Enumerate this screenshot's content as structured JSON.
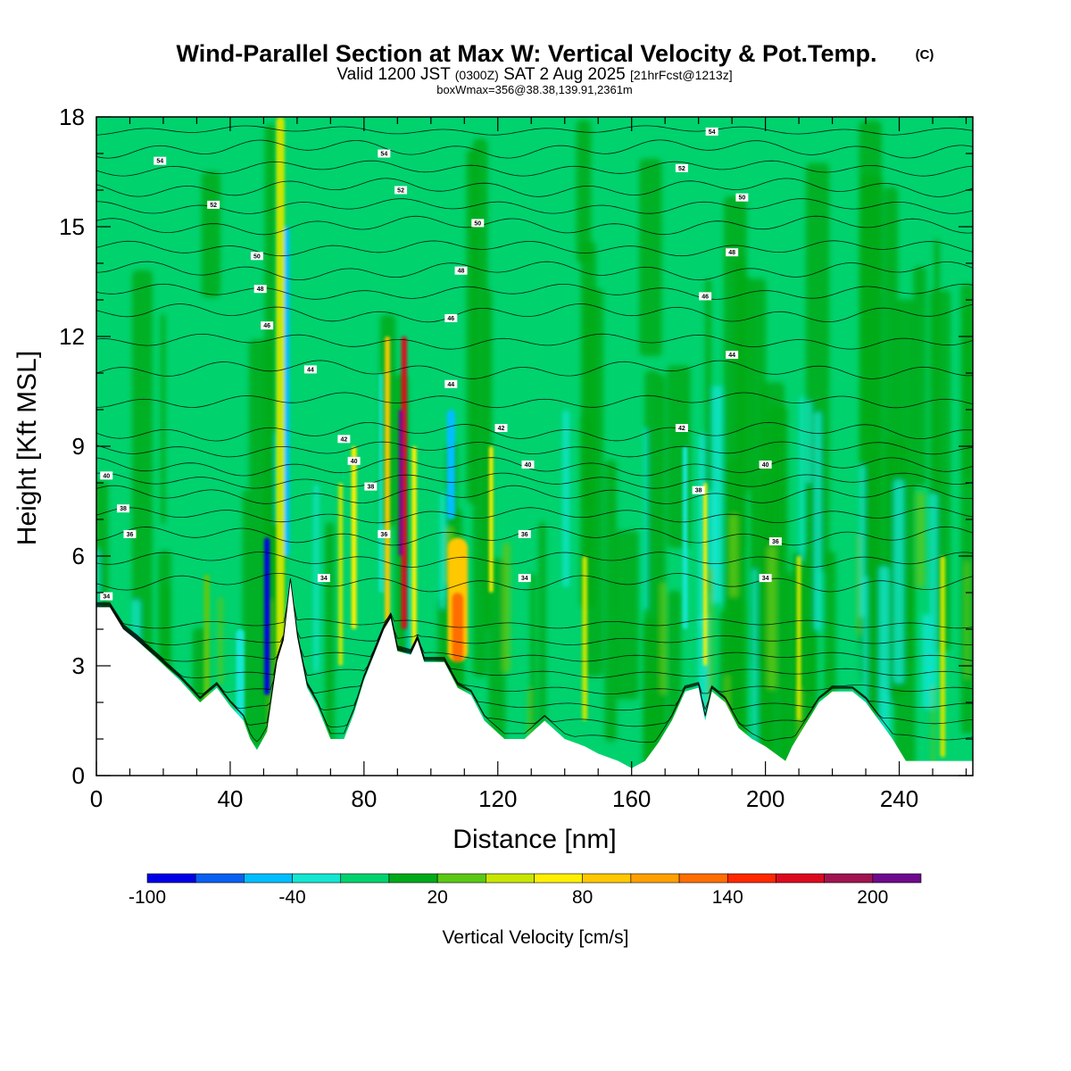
{
  "header": {
    "title_main": "Wind-Parallel Section at Max W: Vertical Velocity & Pot.Temp.",
    "title_mark": "(C)",
    "sub_part1": "Valid 1200 JST",
    "sub_utc": "(0300Z)",
    "sub_part2": "SAT 2 Aug 2025",
    "sub_fcst": "[21hrFcst@1213z]",
    "box_info": "boxWmax=356@38.38,139.91,2361m"
  },
  "chart_data": {
    "type": "heatmap",
    "title": "Wind-Parallel Section at Max W: Vertical Velocity & Pot.Temp.",
    "xlabel": "Distance [nm]",
    "ylabel": "Height [Kft MSL]",
    "xlim": [
      0,
      262
    ],
    "ylim": [
      0,
      18
    ],
    "xticks": [
      {
        "value": 0,
        "label": "0"
      },
      {
        "value": 40,
        "label": "40"
      },
      {
        "value": 80,
        "label": "80"
      },
      {
        "value": 120,
        "label": "120"
      },
      {
        "value": 160,
        "label": "160"
      },
      {
        "value": 200,
        "label": "200"
      },
      {
        "value": 240,
        "label": "240"
      }
    ],
    "yticks": [
      {
        "value": 0,
        "label": "0"
      },
      {
        "value": 3,
        "label": "3"
      },
      {
        "value": 6,
        "label": "6"
      },
      {
        "value": 9,
        "label": "9"
      },
      {
        "value": 12,
        "label": "12"
      },
      {
        "value": 15,
        "label": "15"
      },
      {
        "value": 18,
        "label": "18"
      }
    ],
    "colorbar": {
      "label": "Vertical Velocity [cm/s]",
      "min": -100,
      "max": 220,
      "bins": [
        {
          "from": -100,
          "to": -80,
          "color": "#0000e6"
        },
        {
          "from": -80,
          "to": -60,
          "color": "#0a5ff0"
        },
        {
          "from": -60,
          "to": -40,
          "color": "#00beff"
        },
        {
          "from": -40,
          "to": -20,
          "color": "#14e6d2"
        },
        {
          "from": -20,
          "to": 0,
          "color": "#00d26e"
        },
        {
          "from": 0,
          "to": 20,
          "color": "#00aa19"
        },
        {
          "from": 20,
          "to": 40,
          "color": "#5ac814"
        },
        {
          "from": 40,
          "to": 60,
          "color": "#c8e600"
        },
        {
          "from": 60,
          "to": 80,
          "color": "#fff000"
        },
        {
          "from": 80,
          "to": 100,
          "color": "#ffc800"
        },
        {
          "from": 100,
          "to": 120,
          "color": "#ffa000"
        },
        {
          "from": 120,
          "to": 140,
          "color": "#ff6e00"
        },
        {
          "from": 140,
          "to": 160,
          "color": "#ff2800"
        },
        {
          "from": 160,
          "to": 180,
          "color": "#dc0a1e"
        },
        {
          "from": 180,
          "to": 200,
          "color": "#a01450"
        },
        {
          "from": 200,
          "to": 220,
          "color": "#6e0a8c"
        }
      ],
      "tick_labels": [
        {
          "value": -100,
          "label": "-100"
        },
        {
          "value": -40,
          "label": "-40"
        },
        {
          "value": 20,
          "label": "20"
        },
        {
          "value": 80,
          "label": "80"
        },
        {
          "value": 140,
          "label": "140"
        },
        {
          "value": 200,
          "label": "200"
        }
      ]
    },
    "terrain": [
      [
        0,
        4.6
      ],
      [
        4,
        4.6
      ],
      [
        8,
        4.0
      ],
      [
        12,
        3.7
      ],
      [
        18,
        3.2
      ],
      [
        25,
        2.6
      ],
      [
        31,
        2.0
      ],
      [
        36,
        2.4
      ],
      [
        40,
        1.9
      ],
      [
        44,
        1.5
      ],
      [
        46,
        1.0
      ],
      [
        48,
        0.7
      ],
      [
        51,
        1.2
      ],
      [
        54,
        3.1
      ],
      [
        56,
        3.7
      ],
      [
        58,
        5.3
      ],
      [
        60,
        3.8
      ],
      [
        63,
        2.4
      ],
      [
        66,
        1.9
      ],
      [
        70,
        1.0
      ],
      [
        74,
        1.0
      ],
      [
        77,
        1.7
      ],
      [
        80,
        2.6
      ],
      [
        83,
        3.3
      ],
      [
        86,
        4.0
      ],
      [
        88,
        4.3
      ],
      [
        90,
        3.4
      ],
      [
        94,
        3.3
      ],
      [
        96,
        3.7
      ],
      [
        98,
        3.1
      ],
      [
        104,
        3.1
      ],
      [
        108,
        2.4
      ],
      [
        112,
        2.2
      ],
      [
        116,
        1.5
      ],
      [
        122,
        1.0
      ],
      [
        128,
        1.0
      ],
      [
        134,
        1.5
      ],
      [
        140,
        1.0
      ],
      [
        146,
        0.8
      ],
      [
        150,
        0.6
      ],
      [
        156,
        0.4
      ],
      [
        160,
        0.2
      ],
      [
        164,
        0.4
      ],
      [
        168,
        0.9
      ],
      [
        172,
        1.5
      ],
      [
        176,
        2.3
      ],
      [
        180,
        2.4
      ],
      [
        182,
        1.5
      ],
      [
        184,
        2.3
      ],
      [
        188,
        2.0
      ],
      [
        192,
        1.3
      ],
      [
        196,
        1.0
      ],
      [
        200,
        0.8
      ],
      [
        206,
        0.4
      ],
      [
        208,
        0.8
      ],
      [
        212,
        1.4
      ],
      [
        216,
        2.0
      ],
      [
        220,
        2.3
      ],
      [
        226,
        2.3
      ],
      [
        230,
        2.0
      ],
      [
        234,
        1.5
      ],
      [
        238,
        1.0
      ],
      [
        242,
        0.4
      ],
      [
        246,
        0.4
      ],
      [
        252,
        0.4
      ],
      [
        258,
        0.4
      ],
      [
        262,
        0.4
      ]
    ],
    "updrafts": [
      {
        "x": 55,
        "w": 2.5,
        "ymin": 2.5,
        "ymax": 18,
        "v": 45
      },
      {
        "x": 51,
        "w": 1.6,
        "ymin": 2.2,
        "ymax": 6.5,
        "v": -90
      },
      {
        "x": 57,
        "w": 1.5,
        "ymin": 6,
        "ymax": 15,
        "v": -45
      },
      {
        "x": 92,
        "w": 1.6,
        "ymin": 4,
        "ymax": 12,
        "v": 175
      },
      {
        "x": 91,
        "w": 1.2,
        "ymin": 6,
        "ymax": 10,
        "v": 215
      },
      {
        "x": 87,
        "w": 1.5,
        "ymin": 4,
        "ymax": 12,
        "v": 90
      },
      {
        "x": 95,
        "w": 1.4,
        "ymin": 3.5,
        "ymax": 9,
        "v": 60
      },
      {
        "x": 108,
        "w": 6,
        "ymin": 3.1,
        "ymax": 6.5,
        "v": 85
      },
      {
        "x": 108,
        "w": 3.5,
        "ymin": 3.1,
        "ymax": 5,
        "v": 125
      },
      {
        "x": 77,
        "w": 1.5,
        "ymin": 4,
        "ymax": 9,
        "v": 65
      },
      {
        "x": 73,
        "w": 1.3,
        "ymin": 3,
        "ymax": 8,
        "v": 55
      },
      {
        "x": 118,
        "w": 1.2,
        "ymin": 5,
        "ymax": 9,
        "v": 75
      },
      {
        "x": 182,
        "w": 1.1,
        "ymin": 3,
        "ymax": 8,
        "v": 70
      },
      {
        "x": 210,
        "w": 1.3,
        "ymin": 1.5,
        "ymax": 6,
        "v": 55
      },
      {
        "x": 146,
        "w": 1.5,
        "ymin": 1.5,
        "ymax": 6,
        "v": 45
      },
      {
        "x": 33,
        "w": 1.8,
        "ymin": 2,
        "ymax": 5.5,
        "v": 30
      },
      {
        "x": 106,
        "w": 2.5,
        "ymin": 7,
        "ymax": 10,
        "v": -55
      },
      {
        "x": 176,
        "w": 1.5,
        "ymin": 4,
        "ymax": 9,
        "v": -35
      },
      {
        "x": 43,
        "w": 2.5,
        "ymin": 1.5,
        "ymax": 4,
        "v": -30
      },
      {
        "x": 85,
        "w": 1,
        "ymin": 5,
        "ymax": 11,
        "v": -30
      },
      {
        "x": 253,
        "w": 1.5,
        "ymin": 0.5,
        "ymax": 6,
        "v": 40
      }
    ],
    "theta_contours": [
      {
        "label": "34",
        "y": 4.9,
        "label_x": 3
      },
      {
        "label": "34",
        "y": 5.4,
        "label_x": 68
      },
      {
        "label": "34",
        "y": 5.4,
        "label_x": 128
      },
      {
        "label": "34",
        "y": 5.4,
        "label_x": 200
      },
      {
        "label": "36",
        "y": 6.6,
        "label_x": 10
      },
      {
        "label": "36",
        "y": 6.6,
        "label_x": 86
      },
      {
        "label": "36",
        "y": 6.6,
        "label_x": 128
      },
      {
        "label": "36",
        "y": 6.4,
        "label_x": 203
      },
      {
        "label": "38",
        "y": 7.3,
        "label_x": 8
      },
      {
        "label": "38",
        "y": 7.9,
        "label_x": 82
      },
      {
        "label": "38",
        "y": 7.8,
        "label_x": 180
      },
      {
        "label": "40",
        "y": 8.2,
        "label_x": 3
      },
      {
        "label": "40",
        "y": 8.6,
        "label_x": 77
      },
      {
        "label": "40",
        "y": 8.5,
        "label_x": 129
      },
      {
        "label": "40",
        "y": 8.5,
        "label_x": 200
      },
      {
        "label": "42",
        "y": 9.2,
        "label_x": 74
      },
      {
        "label": "42",
        "y": 9.5,
        "label_x": 121
      },
      {
        "label": "42",
        "y": 9.5,
        "label_x": 175
      },
      {
        "label": "44",
        "y": 11.1,
        "label_x": 64
      },
      {
        "label": "44",
        "y": 10.7,
        "label_x": 106
      },
      {
        "label": "44",
        "y": 11.5,
        "label_x": 190
      },
      {
        "label": "46",
        "y": 12.3,
        "label_x": 51
      },
      {
        "label": "46",
        "y": 12.5,
        "label_x": 106
      },
      {
        "label": "46",
        "y": 13.1,
        "label_x": 182
      },
      {
        "label": "48",
        "y": 13.3,
        "label_x": 49
      },
      {
        "label": "48",
        "y": 13.8,
        "label_x": 109
      },
      {
        "label": "48",
        "y": 14.3,
        "label_x": 190
      },
      {
        "label": "50",
        "y": 14.2,
        "label_x": 48
      },
      {
        "label": "50",
        "y": 15.1,
        "label_x": 114
      },
      {
        "label": "50",
        "y": 15.8,
        "label_x": 193
      },
      {
        "label": "52",
        "y": 15.6,
        "label_x": 35
      },
      {
        "label": "52",
        "y": 16.0,
        "label_x": 91
      },
      {
        "label": "52",
        "y": 16.6,
        "label_x": 175
      },
      {
        "label": "54",
        "y": 16.8,
        "label_x": 19
      },
      {
        "label": "54",
        "y": 17.0,
        "label_x": 86
      },
      {
        "label": "54",
        "y": 17.6,
        "label_x": 184
      }
    ]
  }
}
